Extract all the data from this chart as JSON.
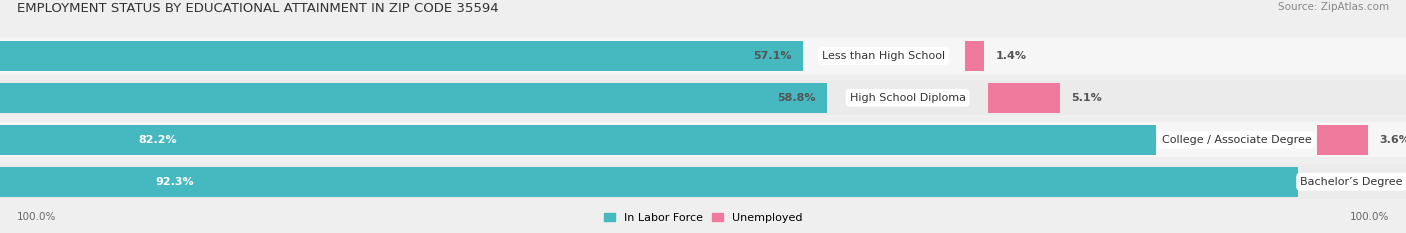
{
  "title": "EMPLOYMENT STATUS BY EDUCATIONAL ATTAINMENT IN ZIP CODE 35594",
  "source": "Source: ZipAtlas.com",
  "categories": [
    "Less than High School",
    "High School Diploma",
    "College / Associate Degree",
    "Bachelor’s Degree or higher"
  ],
  "labor_force": [
    57.1,
    58.8,
    82.2,
    92.3
  ],
  "unemployed": [
    1.4,
    5.1,
    3.6,
    0.0
  ],
  "labor_force_color": "#45B8C0",
  "unemployed_color": "#F07A9E",
  "bg_color": "#EFEFEF",
  "bar_bg_color": "#E2E2E2",
  "row_bg_colors": [
    "#F5F5F5",
    "#EBEBEB"
  ],
  "title_fontsize": 9.5,
  "source_fontsize": 7.5,
  "value_fontsize": 8,
  "cat_fontsize": 8,
  "tick_fontsize": 7.5,
  "legend_fontsize": 8,
  "max_val": 100.0,
  "left_axis_label": "100.0%",
  "right_axis_label": "100.0%"
}
